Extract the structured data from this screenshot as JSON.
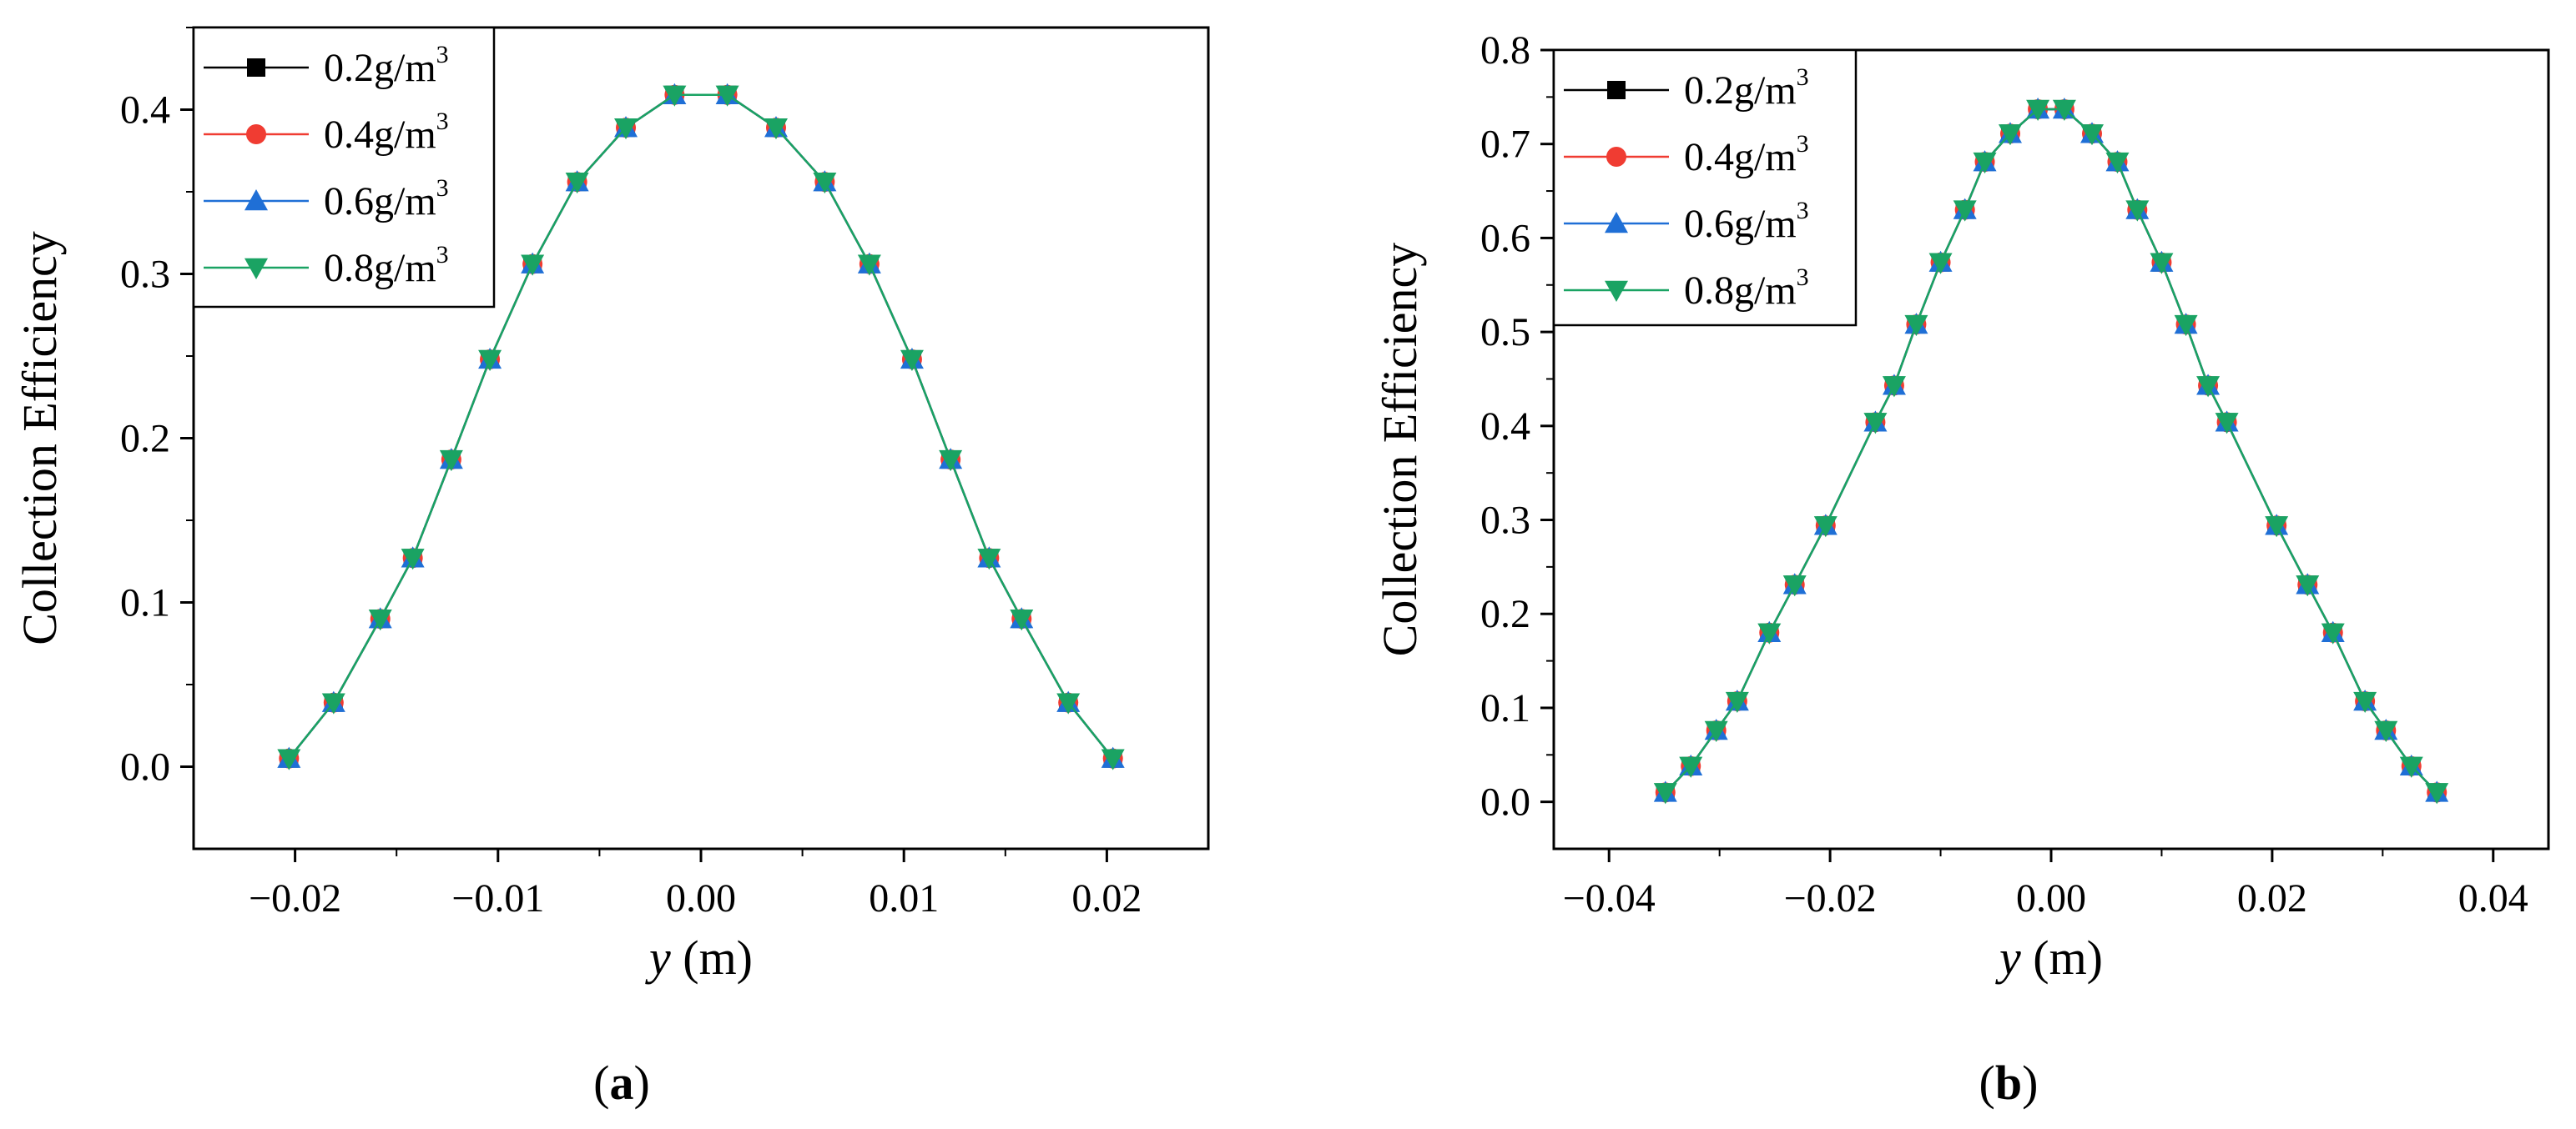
{
  "chart_data": [
    {
      "panel": "a",
      "panel_label": "(a)",
      "type": "line",
      "xlabel_italic": "y",
      "xlabel_unit": " (m)",
      "ylabel": "Collection Efficiency",
      "xlim": [
        -0.025,
        0.025
      ],
      "ylim": [
        -0.05,
        0.45
      ],
      "xticks": [
        -0.02,
        -0.01,
        0.0,
        0.01,
        0.02
      ],
      "xtick_labels": [
        "−0.02",
        "−0.01",
        "0.00",
        "0.01",
        "0.02"
      ],
      "yticks": [
        0.0,
        0.1,
        0.2,
        0.3,
        0.4
      ],
      "ytick_labels": [
        "0.0",
        "0.1",
        "0.2",
        "0.3",
        "0.4"
      ],
      "x": [
        -0.0203,
        -0.0181,
        -0.0158,
        -0.0142,
        -0.0123,
        -0.0104,
        -0.0083,
        -0.0061,
        -0.0037,
        -0.0013,
        0.0013,
        0.0037,
        0.0061,
        0.0083,
        0.0104,
        0.0123,
        0.0142,
        0.0158,
        0.0181,
        0.0203
      ],
      "series": [
        {
          "name": "0.2g/m3",
          "label": "0.2g/m",
          "sup": "3",
          "color": "#000000",
          "marker": "square",
          "values": [
            0.005,
            0.039,
            0.09,
            0.127,
            0.187,
            0.248,
            0.306,
            0.356,
            0.389,
            0.409,
            0.409,
            0.389,
            0.356,
            0.306,
            0.248,
            0.187,
            0.127,
            0.09,
            0.039,
            0.005
          ]
        },
        {
          "name": "0.4g/m3",
          "label": "0.4g/m",
          "sup": "3",
          "color": "#f03c32",
          "marker": "circle",
          "values": [
            0.005,
            0.039,
            0.09,
            0.127,
            0.187,
            0.248,
            0.306,
            0.356,
            0.389,
            0.409,
            0.409,
            0.389,
            0.356,
            0.306,
            0.248,
            0.187,
            0.127,
            0.09,
            0.039,
            0.005
          ]
        },
        {
          "name": "0.6g/m3",
          "label": "0.6g/m",
          "sup": "3",
          "color": "#1f6fd6",
          "marker": "triangle-up",
          "values": [
            0.005,
            0.039,
            0.09,
            0.127,
            0.187,
            0.248,
            0.306,
            0.356,
            0.389,
            0.409,
            0.409,
            0.389,
            0.356,
            0.306,
            0.248,
            0.187,
            0.127,
            0.09,
            0.039,
            0.005
          ]
        },
        {
          "name": "0.8g/m3",
          "label": "0.8g/m",
          "sup": "3",
          "color": "#1aa363",
          "marker": "triangle-down",
          "values": [
            0.005,
            0.039,
            0.09,
            0.127,
            0.187,
            0.248,
            0.306,
            0.356,
            0.389,
            0.409,
            0.409,
            0.389,
            0.356,
            0.306,
            0.248,
            0.187,
            0.127,
            0.09,
            0.039,
            0.005
          ]
        }
      ],
      "legend": "top-left"
    },
    {
      "panel": "b",
      "panel_label": "(b)",
      "type": "line",
      "xlabel_italic": "y",
      "xlabel_unit": " (m)",
      "ylabel": "Collection Efficiency",
      "xlim": [
        -0.045,
        0.045
      ],
      "ylim": [
        -0.05,
        0.8
      ],
      "xticks": [
        -0.04,
        -0.02,
        0.0,
        0.02,
        0.04
      ],
      "xtick_labels": [
        "−0.04",
        "−0.02",
        "0.00",
        "0.02",
        "0.04"
      ],
      "yticks": [
        0.0,
        0.1,
        0.2,
        0.3,
        0.4,
        0.5,
        0.6,
        0.7,
        0.8
      ],
      "ytick_labels": [
        "0.0",
        "0.1",
        "0.2",
        "0.3",
        "0.4",
        "0.5",
        "0.6",
        "0.7",
        "0.8"
      ],
      "x": [
        -0.0349,
        -0.0326,
        -0.0303,
        -0.0284,
        -0.0255,
        -0.0232,
        -0.0204,
        -0.0159,
        -0.0142,
        -0.0122,
        -0.01,
        -0.0078,
        -0.006,
        -0.0037,
        -0.0012,
        0.0012,
        0.0037,
        0.006,
        0.0078,
        0.01,
        0.0122,
        0.0142,
        0.0159,
        0.0204,
        0.0232,
        0.0255,
        0.0284,
        0.0303,
        0.0326,
        0.0349
      ],
      "series": [
        {
          "name": "0.2g/m3",
          "label": "0.2g/m",
          "sup": "3",
          "color": "#000000",
          "marker": "square",
          "values": [
            0.01,
            0.038,
            0.076,
            0.107,
            0.18,
            0.231,
            0.294,
            0.404,
            0.443,
            0.508,
            0.574,
            0.63,
            0.681,
            0.711,
            0.737,
            0.737,
            0.711,
            0.681,
            0.63,
            0.574,
            0.508,
            0.443,
            0.404,
            0.294,
            0.231,
            0.18,
            0.107,
            0.076,
            0.038,
            0.01
          ]
        },
        {
          "name": "0.4g/m3",
          "label": "0.4g/m",
          "sup": "3",
          "color": "#f03c32",
          "marker": "circle",
          "values": [
            0.01,
            0.038,
            0.076,
            0.107,
            0.18,
            0.231,
            0.294,
            0.404,
            0.443,
            0.508,
            0.574,
            0.63,
            0.681,
            0.711,
            0.737,
            0.737,
            0.711,
            0.681,
            0.63,
            0.574,
            0.508,
            0.443,
            0.404,
            0.294,
            0.231,
            0.18,
            0.107,
            0.076,
            0.038,
            0.01
          ]
        },
        {
          "name": "0.6g/m3",
          "label": "0.6g/m",
          "sup": "3",
          "color": "#1f6fd6",
          "marker": "triangle-up",
          "values": [
            0.01,
            0.038,
            0.076,
            0.107,
            0.18,
            0.231,
            0.294,
            0.404,
            0.443,
            0.508,
            0.574,
            0.63,
            0.681,
            0.711,
            0.737,
            0.737,
            0.711,
            0.681,
            0.63,
            0.574,
            0.508,
            0.443,
            0.404,
            0.294,
            0.231,
            0.18,
            0.107,
            0.076,
            0.038,
            0.01
          ]
        },
        {
          "name": "0.8g/m3",
          "label": "0.8g/m",
          "sup": "3",
          "color": "#1aa363",
          "marker": "triangle-down",
          "values": [
            0.01,
            0.038,
            0.076,
            0.107,
            0.18,
            0.231,
            0.294,
            0.404,
            0.443,
            0.508,
            0.574,
            0.63,
            0.681,
            0.711,
            0.737,
            0.737,
            0.711,
            0.681,
            0.63,
            0.574,
            0.508,
            0.443,
            0.404,
            0.294,
            0.231,
            0.18,
            0.107,
            0.076,
            0.038,
            0.01
          ]
        }
      ],
      "legend": "top-left"
    }
  ]
}
